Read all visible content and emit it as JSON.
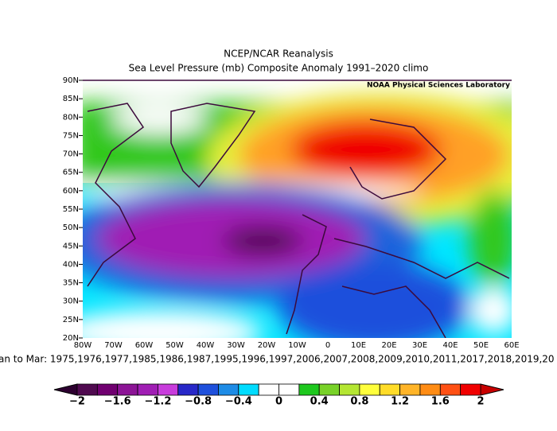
{
  "header": {
    "title": "NCEP/NCAR Reanalysis",
    "subtitle": "Sea Level Pressure (mb) Composite Anomaly 1991–2020 climo",
    "credit": "NOAA Physical Sciences Laboratory"
  },
  "map": {
    "lat_labels": [
      "90N",
      "85N",
      "80N",
      "75N",
      "70N",
      "65N",
      "60N",
      "55N",
      "50N",
      "45N",
      "40N",
      "35N",
      "30N",
      "25N",
      "20N"
    ],
    "lon_labels": [
      "80W",
      "70W",
      "60W",
      "50W",
      "40W",
      "30W",
      "20W",
      "10W",
      "0",
      "10E",
      "20E",
      "30E",
      "40E",
      "50E",
      "60E"
    ],
    "caption": "an to Mar: 1975,1976,1977,1985,1986,1987,1995,1996,1997,2006,2007,2008,2009,2010,2011,2017,2018,2019,20"
  },
  "colorbar": {
    "labels": [
      "−2",
      "−1.6",
      "−1.2",
      "−0.8",
      "−0.4",
      "0",
      "0.4",
      "0.8",
      "1.2",
      "1.6",
      "2"
    ],
    "colors": [
      "#500a50",
      "#700070",
      "#8c1496",
      "#a01eb4",
      "#c83cdc",
      "#2828c8",
      "#1e50dc",
      "#1e8ce6",
      "#00dcff",
      "#ffffff",
      "#ffffff",
      "#1ec81e",
      "#78d228",
      "#b4e632",
      "#ffff3c",
      "#ffdc28",
      "#ffb428",
      "#ff8c14",
      "#ff5014",
      "#f00000"
    ],
    "under_color": "#2d0030",
    "over_color": "#c80000"
  }
}
